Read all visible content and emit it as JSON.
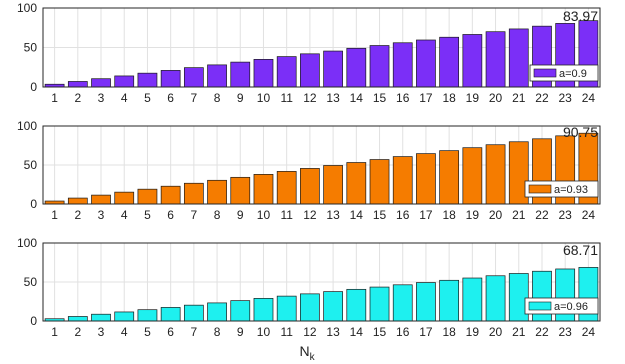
{
  "chart_data": [
    {
      "type": "bar",
      "categories": [
        "1",
        "2",
        "3",
        "4",
        "5",
        "6",
        "7",
        "8",
        "9",
        "10",
        "11",
        "12",
        "13",
        "14",
        "15",
        "16",
        "17",
        "18",
        "19",
        "20",
        "21",
        "22",
        "23",
        "24"
      ],
      "series": [
        {
          "name": "a=0.9",
          "values": [
            3.5,
            7.0,
            10.5,
            14.0,
            17.5,
            21.0,
            24.5,
            28.0,
            31.5,
            35.0,
            38.5,
            42.0,
            45.5,
            49.0,
            52.5,
            56.0,
            59.5,
            63.0,
            66.5,
            70.0,
            73.5,
            77.0,
            80.5,
            83.97
          ]
        }
      ],
      "color": "#7b2ff7",
      "annotation": "83.97",
      "ylim": [
        0,
        100
      ],
      "yticks": [
        "0",
        "50",
        "100"
      ],
      "grid": true,
      "legend_position": "bottom-right"
    },
    {
      "type": "bar",
      "categories": [
        "1",
        "2",
        "3",
        "4",
        "5",
        "6",
        "7",
        "8",
        "9",
        "10",
        "11",
        "12",
        "13",
        "14",
        "15",
        "16",
        "17",
        "18",
        "19",
        "20",
        "21",
        "22",
        "23",
        "24"
      ],
      "series": [
        {
          "name": "a=0.93",
          "values": [
            3.8,
            7.6,
            11.4,
            15.2,
            19.0,
            22.8,
            26.6,
            30.4,
            34.2,
            38.0,
            41.8,
            45.6,
            49.4,
            53.2,
            57.0,
            60.8,
            64.6,
            68.4,
            72.2,
            76.0,
            79.8,
            83.6,
            87.4,
            90.75
          ]
        }
      ],
      "color": "#f57c00",
      "annotation": "90.75",
      "ylim": [
        0,
        100
      ],
      "yticks": [
        "0",
        "50",
        "100"
      ],
      "grid": true,
      "legend_position": "bottom-right"
    },
    {
      "type": "bar",
      "categories": [
        "1",
        "2",
        "3",
        "4",
        "5",
        "6",
        "7",
        "8",
        "9",
        "10",
        "11",
        "12",
        "13",
        "14",
        "15",
        "16",
        "17",
        "18",
        "19",
        "20",
        "21",
        "22",
        "23",
        "24"
      ],
      "series": [
        {
          "name": "a=0.96",
          "values": [
            2.9,
            5.8,
            8.7,
            11.6,
            14.5,
            17.4,
            20.3,
            23.2,
            26.1,
            29.0,
            31.9,
            34.8,
            37.7,
            40.6,
            43.5,
            46.4,
            49.3,
            52.2,
            55.1,
            58.0,
            60.9,
            63.8,
            66.7,
            68.71
          ]
        }
      ],
      "color": "#1ef0ef",
      "annotation": "68.71",
      "ylim": [
        0,
        100
      ],
      "yticks": [
        "0",
        "50",
        "100"
      ],
      "grid": true,
      "legend_position": "bottom-right"
    }
  ],
  "xlabel": {
    "main": "N",
    "sub": "k"
  }
}
